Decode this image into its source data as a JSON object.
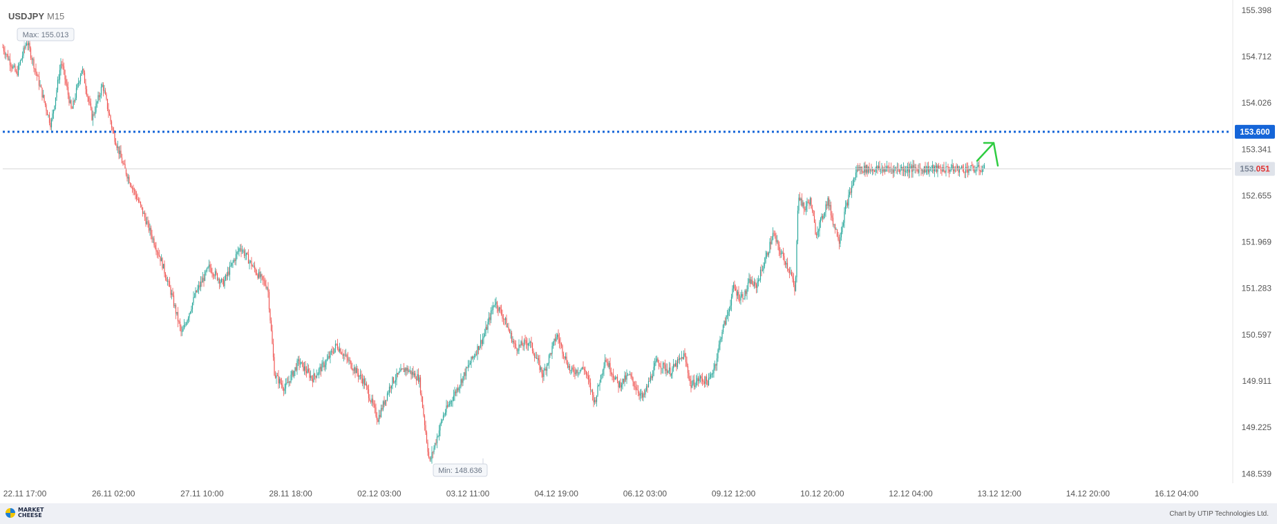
{
  "header": {
    "symbol": "USDJPY",
    "timeframe": "M15"
  },
  "annotations": {
    "max_label": "Max: 155.013",
    "min_label": "Min: 148.636"
  },
  "footer": {
    "logo_line1": "MARKET",
    "logo_line2": "CHEESE",
    "credit": "Chart by UTIP Technologies Ltd."
  },
  "colors": {
    "bull": "#26a69a",
    "bear": "#ef5350",
    "target_line": "#1565d8",
    "current_line": "#d6d6d6",
    "arrow": "#2ecc40",
    "axis_text": "#555555"
  },
  "chart_data": {
    "type": "candlestick",
    "ylim": [
      148.4,
      155.55
    ],
    "y_ticks": [
      "155.398",
      "154.712",
      "154.026",
      "153.341",
      "152.655",
      "151.969",
      "151.283",
      "150.597",
      "149.911",
      "149.225",
      "148.539"
    ],
    "y_tick_values": [
      155.398,
      154.712,
      154.026,
      153.341,
      152.655,
      151.969,
      151.283,
      150.597,
      149.911,
      149.225,
      148.539
    ],
    "x_ticks": [
      "22.11 17:00",
      "26.11 02:00",
      "27.11 10:00",
      "28.11 18:00",
      "02.12 03:00",
      "03.12 11:00",
      "04.12 19:00",
      "06.12 03:00",
      "09.12 12:00",
      "10.12 20:00",
      "12.12 04:00",
      "13.12 12:00",
      "14.12 20:00",
      "16.12 04:00"
    ],
    "max": 155.013,
    "min": 148.636,
    "target_level": {
      "value": 153.6,
      "label": "153.600"
    },
    "current_price": {
      "value": 153.051,
      "label_main": "153.",
      "label_accent": "051"
    },
    "price_path": [
      [
        0,
        154.85
      ],
      [
        0.02,
        154.45
      ],
      [
        0.035,
        154.95
      ],
      [
        0.045,
        154.6
      ],
      [
        0.07,
        153.7
      ],
      [
        0.085,
        154.65
      ],
      [
        0.1,
        153.9
      ],
      [
        0.115,
        154.55
      ],
      [
        0.13,
        153.8
      ],
      [
        0.145,
        154.3
      ],
      [
        0.16,
        153.6
      ],
      [
        0.175,
        153.1
      ],
      [
        0.2,
        152.5
      ],
      [
        0.23,
        151.7
      ],
      [
        0.245,
        151.2
      ],
      [
        0.26,
        150.6
      ],
      [
        0.28,
        151.2
      ],
      [
        0.3,
        151.6
      ],
      [
        0.32,
        151.35
      ],
      [
        0.345,
        151.9
      ],
      [
        0.37,
        151.5
      ],
      [
        0.385,
        151.3
      ],
      [
        0.395,
        150.0
      ],
      [
        0.41,
        149.8
      ],
      [
        0.43,
        150.2
      ],
      [
        0.45,
        149.95
      ],
      [
        0.47,
        150.2
      ],
      [
        0.485,
        150.45
      ],
      [
        0.51,
        150.1
      ],
      [
        0.525,
        149.9
      ],
      [
        0.545,
        149.35
      ],
      [
        0.565,
        149.9
      ],
      [
        0.585,
        150.1
      ],
      [
        0.605,
        149.95
      ],
      [
        0.62,
        148.7
      ],
      [
        0.64,
        149.4
      ],
      [
        0.66,
        149.8
      ],
      [
        0.685,
        150.3
      ],
      [
        0.7,
        150.6
      ],
      [
        0.715,
        151.1
      ],
      [
        0.73,
        150.8
      ],
      [
        0.745,
        150.4
      ],
      [
        0.765,
        150.5
      ],
      [
        0.785,
        150.0
      ],
      [
        0.805,
        150.6
      ],
      [
        0.825,
        150.05
      ],
      [
        0.845,
        150.1
      ],
      [
        0.86,
        149.6
      ],
      [
        0.875,
        150.25
      ],
      [
        0.895,
        149.85
      ],
      [
        0.91,
        150.0
      ],
      [
        0.93,
        149.65
      ],
      [
        0.95,
        150.2
      ],
      [
        0.97,
        150.05
      ],
      [
        0.99,
        150.3
      ],
      [
        1.0,
        149.85
      ]
    ],
    "price_path_b": [
      [
        0,
        149.85
      ],
      [
        0.03,
        149.95
      ],
      [
        0.06,
        149.9
      ],
      [
        0.085,
        150.2
      ],
      [
        0.105,
        150.65
      ],
      [
        0.125,
        150.9
      ],
      [
        0.145,
        151.3
      ],
      [
        0.165,
        151.15
      ],
      [
        0.185,
        151.2
      ],
      [
        0.2,
        151.4
      ],
      [
        0.22,
        151.3
      ],
      [
        0.24,
        151.55
      ],
      [
        0.26,
        151.8
      ],
      [
        0.28,
        152.1
      ],
      [
        0.3,
        151.85
      ],
      [
        0.32,
        151.7
      ],
      [
        0.34,
        151.5
      ],
      [
        0.355,
        151.2
      ],
      [
        0.365,
        152.7
      ],
      [
        0.385,
        152.45
      ],
      [
        0.405,
        152.6
      ],
      [
        0.425,
        152.1
      ],
      [
        0.445,
        152.3
      ],
      [
        0.465,
        152.6
      ],
      [
        0.485,
        152.25
      ],
      [
        0.505,
        152.0
      ],
      [
        0.525,
        152.45
      ],
      [
        0.545,
        152.75
      ],
      [
        0.565,
        153.05
      ]
    ]
  }
}
